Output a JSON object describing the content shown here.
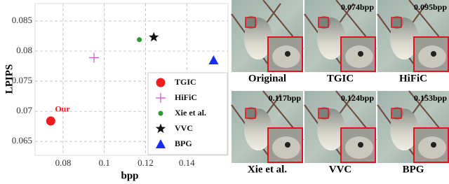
{
  "chart_data": {
    "type": "scatter",
    "xlabel": "bpp",
    "ylabel": "LPIPS",
    "xlim": [
      0.0664,
      0.16
    ],
    "ylim": [
      0.0627,
      0.0879
    ],
    "xticks": [
      0.08,
      0.1,
      0.12,
      0.14
    ],
    "yticks": [
      0.065,
      0.07,
      0.075,
      0.08,
      0.085
    ],
    "grid": true,
    "legend": "lower right",
    "annotation": "Our",
    "series": [
      {
        "name": "TGIC",
        "color": "#ee1c1c",
        "marker": "circle",
        "x": [
          0.074
        ],
        "values": [
          0.0684
        ]
      },
      {
        "name": "HiFiC",
        "color": "#d04fd0",
        "marker": "plus",
        "x": [
          0.095
        ],
        "values": [
          0.0789
        ]
      },
      {
        "name": "Xie et al.",
        "color": "#2a9a2a",
        "marker": "dot",
        "x": [
          0.117
        ],
        "values": [
          0.0819
        ]
      },
      {
        "name": "VVC",
        "color": "#111111",
        "marker": "star",
        "x": [
          0.124
        ],
        "values": [
          0.0823
        ]
      },
      {
        "name": "BPG",
        "color": "#1a2cf0",
        "marker": "triangle",
        "x": [
          0.153
        ],
        "values": [
          0.0785
        ]
      }
    ]
  },
  "panels": [
    {
      "label": "Original"
    },
    {
      "label": "TGIC",
      "bpp": "0.074bpp"
    },
    {
      "label": "HiFiC",
      "bpp": "0.095bpp"
    },
    {
      "label": "Xie et al.",
      "bpp": "0.117bpp"
    },
    {
      "label": "VVC",
      "bpp": "0.124bpp"
    },
    {
      "label": "BPG",
      "bpp": "0.153bpp"
    }
  ]
}
